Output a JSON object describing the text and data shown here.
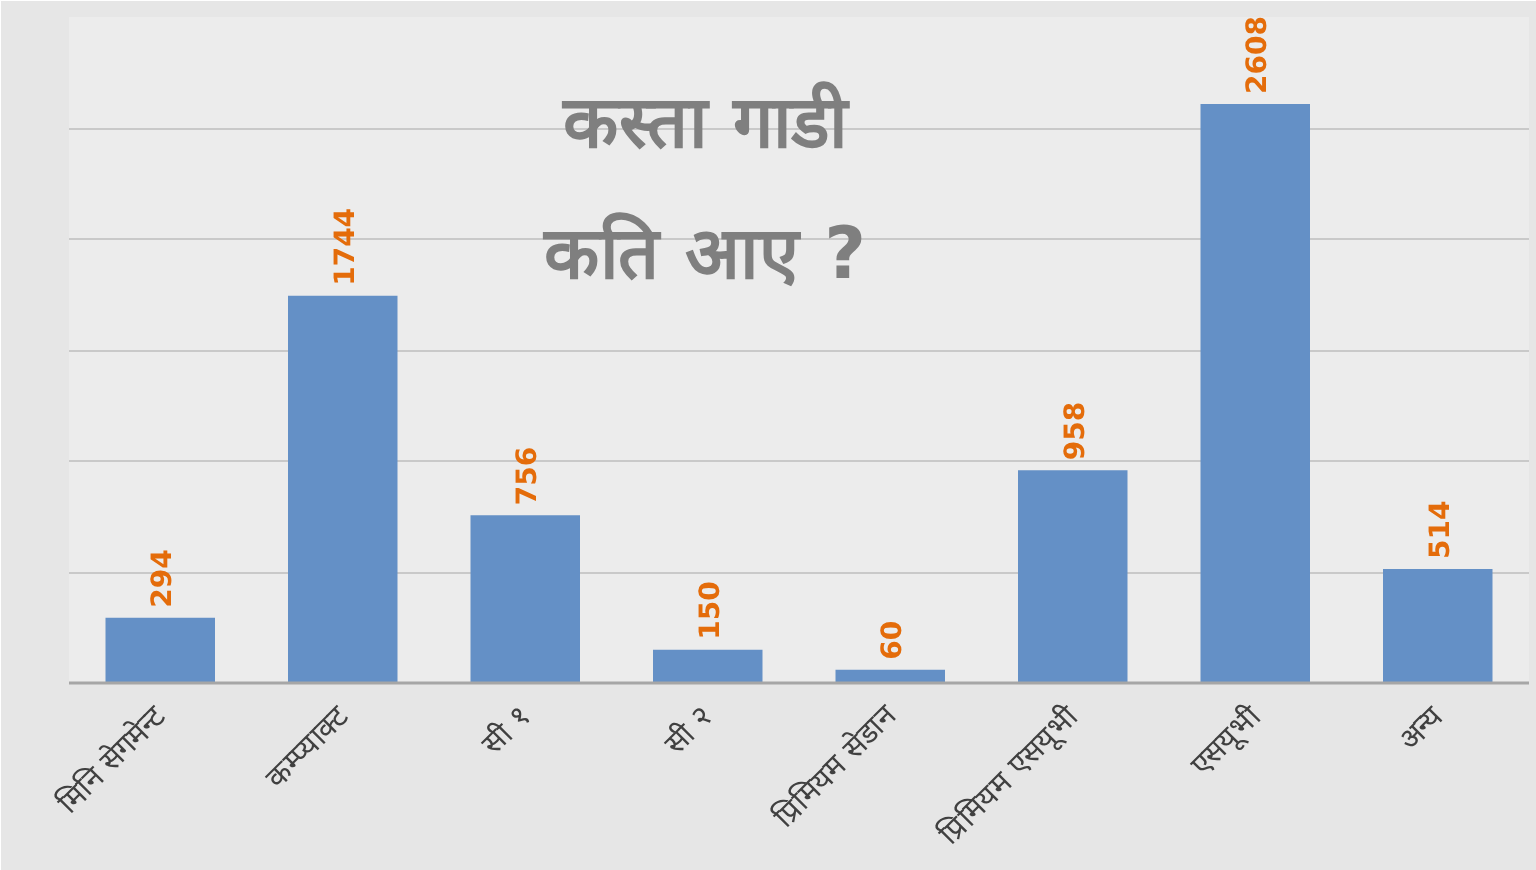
{
  "chart_data": {
    "type": "bar",
    "title": "कस्ता गाडी\nकति आए ?",
    "categories": [
      "मिनि सेगमेन्ट",
      "कम्प्याक्ट",
      "सी १",
      "सी २",
      "प्रिमियम सेडान",
      "प्रिमियम एसयूभी",
      "एसयूभी",
      "अन्य"
    ],
    "values": [
      294,
      1744,
      756,
      150,
      60,
      958,
      2608,
      514
    ],
    "color": "#6490c6",
    "ylim": [
      0,
      3000
    ],
    "yticks": [
      {
        "value": 0,
        "label": null
      },
      {
        "value": 500,
        "label": null
      },
      {
        "value": 1000,
        "label": null
      },
      {
        "value": 1500,
        "label": null
      },
      {
        "value": 2000,
        "label": null
      },
      {
        "value": 2500,
        "label": null
      },
      {
        "value": 3000,
        "label": null
      }
    ],
    "grid": "y",
    "tick_labels": "x",
    "data_labels": true
  }
}
